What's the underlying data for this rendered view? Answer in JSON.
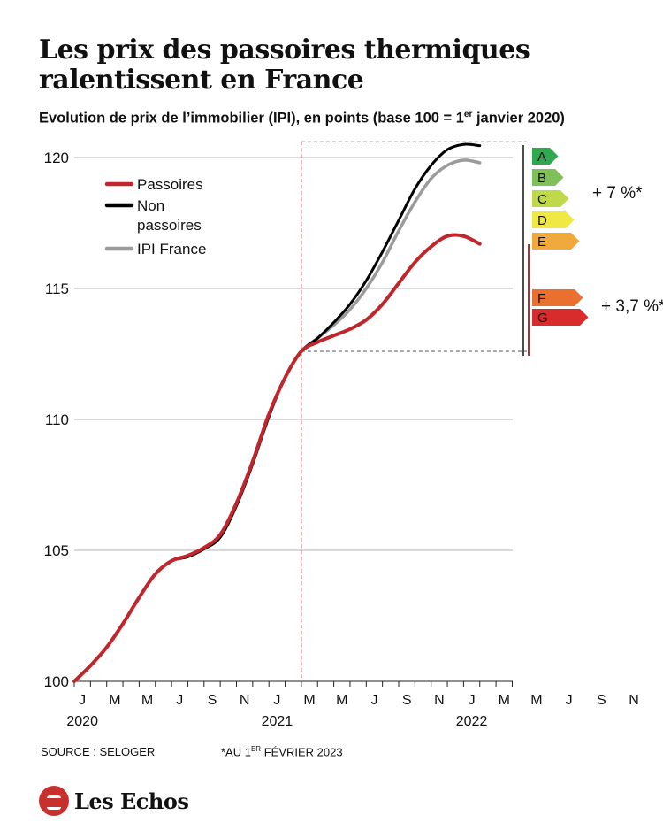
{
  "page": {
    "title": "Les prix des passoires thermiques ralentissent en France",
    "subtitle_main": "Evolution de prix de l’immobilier (IPI), en points (base 100 = 1",
    "subtitle_sup": "er",
    "subtitle_end": " janvier 2020)",
    "source": "SOURCE : SELOGER",
    "note_main": "*AU 1",
    "note_sup": "ER",
    "note_end": " FÉVRIER 2023",
    "logo": "Les Echos"
  },
  "chart_data": {
    "type": "line",
    "ylim": [
      100,
      120.5
    ],
    "yticks": [
      100,
      105,
      110,
      115,
      120
    ],
    "x_month_labels": [
      "J",
      "M",
      "M",
      "J",
      "S",
      "N",
      "J",
      "M",
      "M",
      "J",
      "S",
      "N",
      "J",
      "M",
      "M",
      "J",
      "S",
      "N"
    ],
    "x_year_labels": [
      "2020",
      "2021",
      "2022"
    ],
    "legend": {
      "position": "top-left"
    },
    "series": [
      {
        "name": "IPI France",
        "color": "#9b9b9b",
        "values": [
          100.0,
          100.6,
          101.3,
          102.2,
          103.2,
          104.1,
          104.6,
          104.8,
          105.1,
          105.6,
          106.8,
          108.4,
          110.2,
          111.6,
          112.6,
          113.1,
          113.6,
          114.2,
          115.0,
          116.0,
          117.2,
          118.3,
          119.2,
          119.7,
          119.9,
          119.8
        ]
      },
      {
        "name": "Non passoires",
        "color": "#000000",
        "values": [
          100.0,
          100.6,
          101.3,
          102.2,
          103.2,
          104.1,
          104.6,
          104.75,
          105.05,
          105.5,
          106.7,
          108.3,
          110.1,
          111.6,
          112.6,
          113.1,
          113.7,
          114.4,
          115.3,
          116.4,
          117.6,
          118.8,
          119.7,
          120.3,
          120.5,
          120.45
        ]
      },
      {
        "name": "Passoires",
        "color": "#c0272d",
        "values": [
          100.0,
          100.6,
          101.3,
          102.2,
          103.2,
          104.1,
          104.6,
          104.8,
          105.1,
          105.6,
          106.8,
          108.4,
          110.2,
          111.6,
          112.6,
          112.95,
          113.2,
          113.45,
          113.8,
          114.4,
          115.2,
          116.0,
          116.6,
          117.0,
          117.0,
          116.7
        ]
      }
    ],
    "annotations": {
      "group_high": {
        "labels": [
          "A",
          "B",
          "C",
          "D",
          "E"
        ],
        "colors": [
          "#2fa84f",
          "#7fc05a",
          "#bfd94a",
          "#efe845",
          "#f0a93d"
        ],
        "text": "+ 7 %*"
      },
      "group_low": {
        "labels": [
          "F",
          "G"
        ],
        "colors": [
          "#e9702f",
          "#d82b2b"
        ],
        "text": "+ 3,7 %*"
      }
    }
  }
}
